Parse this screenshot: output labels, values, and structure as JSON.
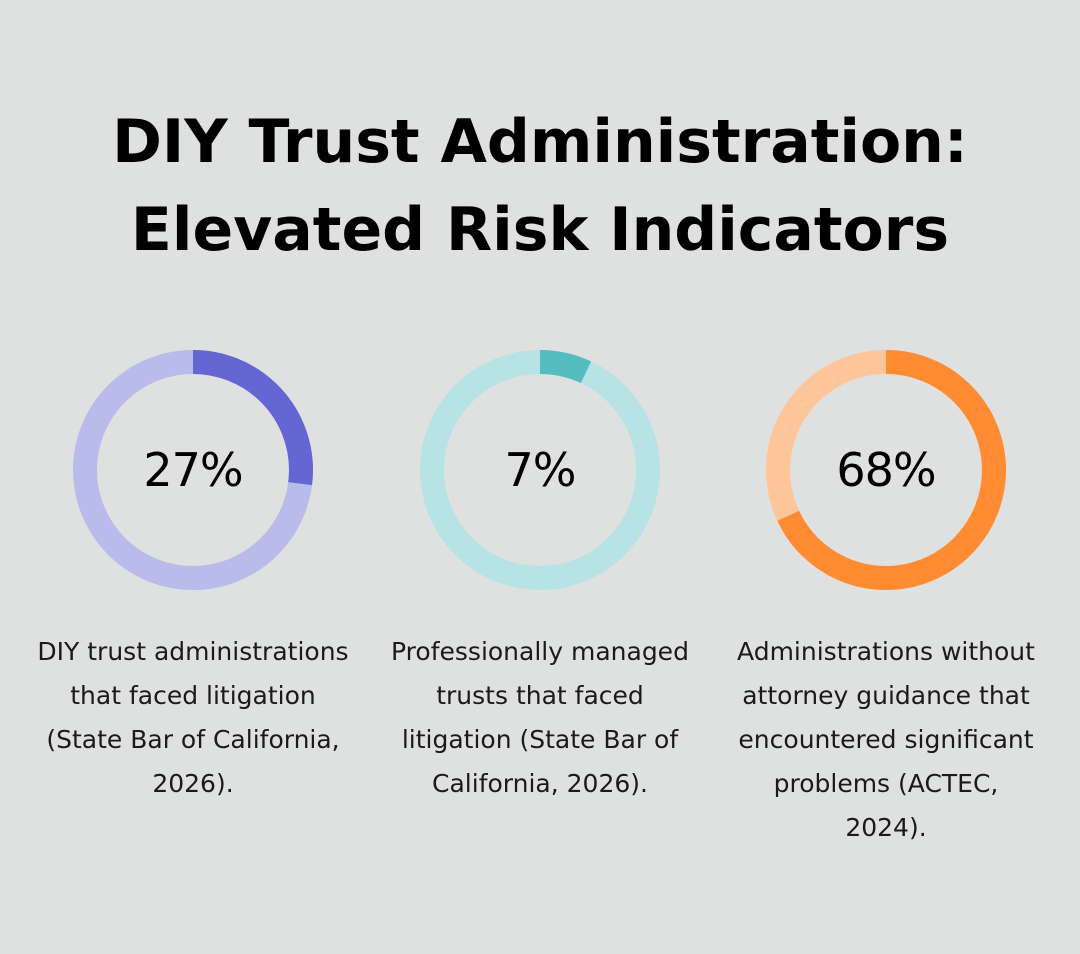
{
  "title_line1": "DIY Trust Administration:",
  "title_line2": "Elevated Risk Indicators",
  "chart_data": [
    {
      "type": "pie",
      "variant": "donut",
      "value": 27,
      "label": "27%",
      "description": "DIY trust administrations that faced litigation (State Bar of California, 2026).",
      "color_fill": "#6466d4",
      "color_track": "#b9bbea"
    },
    {
      "type": "pie",
      "variant": "donut",
      "value": 7,
      "label": "7%",
      "description": "Professionally managed trusts that faced litigation (State Bar of California, 2026).",
      "color_fill": "#55bcbf",
      "color_track": "#b8e3e4"
    },
    {
      "type": "pie",
      "variant": "donut",
      "value": 68,
      "label": "68%",
      "description": "Administrations without attorney guidance that encountered significant problems (ACTEC, 2024).",
      "color_fill": "#ff8b33",
      "color_track": "#fdc59a"
    }
  ]
}
